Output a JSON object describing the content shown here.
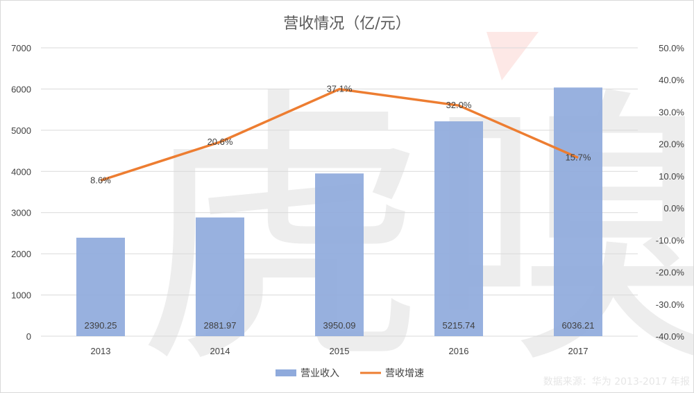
{
  "chart_data": {
    "type": "bar",
    "title": "营收情况（亿/元）",
    "categories": [
      "2013",
      "2014",
      "2015",
      "2016",
      "2017"
    ],
    "series": [
      {
        "name": "营业收入",
        "type": "bar",
        "axis": "left",
        "color": "#8faadc",
        "values": [
          2390.25,
          2881.97,
          3950.09,
          5215.74,
          6036.21
        ],
        "labels": [
          "2390.25",
          "2881.97",
          "3950.09",
          "5215.74",
          "6036.21"
        ]
      },
      {
        "name": "营收增速",
        "type": "line",
        "axis": "right",
        "color": "#ed7d31",
        "values": [
          8.6,
          20.6,
          37.1,
          32.0,
          15.7
        ],
        "labels": [
          "8.6%",
          "20.6%",
          "37.1%",
          "32.0%",
          "15.7%"
        ]
      }
    ],
    "y_left": {
      "min": 0,
      "max": 7000,
      "ticks": [
        "0",
        "1000",
        "2000",
        "3000",
        "4000",
        "5000",
        "6000",
        "7000"
      ],
      "tick_values": [
        0,
        1000,
        2000,
        3000,
        4000,
        5000,
        6000,
        7000
      ]
    },
    "y_right": {
      "min": -40,
      "max": 50,
      "ticks": [
        "-40.0%",
        "-30.0%",
        "-20.0%",
        "-10.0%",
        "0.0%",
        "10.0%",
        "20.0%",
        "30.0%",
        "40.0%",
        "50.0%"
      ],
      "tick_values": [
        -40,
        -30,
        -20,
        -10,
        0,
        10,
        20,
        30,
        40,
        50
      ]
    },
    "grid": true,
    "legend_position": "bottom"
  },
  "source_note": "数据来源：华为 2013-2017 年报",
  "watermark": "虎嗅"
}
